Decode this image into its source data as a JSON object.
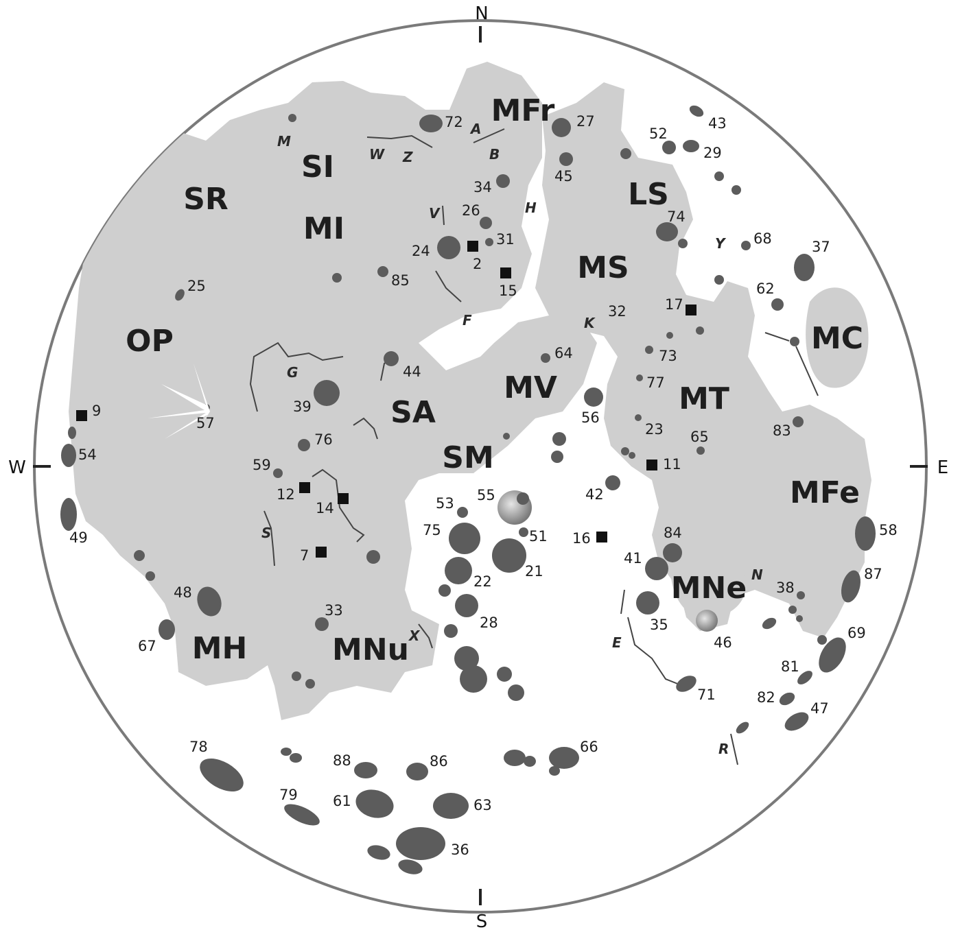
{
  "colors": {
    "background": "#ffffff",
    "disk": "#ffffff",
    "disk_edge": "#7a7a7a",
    "maria": "#cfcfcf",
    "crater": "#5c5c5c",
    "text": "#1e1e1e"
  },
  "compass": {
    "north": "N",
    "south": "S",
    "west": "W",
    "east": "E"
  },
  "maria": [
    {
      "label": "SR"
    },
    {
      "label": "SI"
    },
    {
      "label": "MI"
    },
    {
      "label": "MFr"
    },
    {
      "label": "LS"
    },
    {
      "label": "MS"
    },
    {
      "label": "MC"
    },
    {
      "label": "OP"
    },
    {
      "label": "SA"
    },
    {
      "label": "MV"
    },
    {
      "label": "MT"
    },
    {
      "label": "SM"
    },
    {
      "label": "MFe"
    },
    {
      "label": "MNe"
    },
    {
      "label": "MH"
    },
    {
      "label": "MNu"
    }
  ],
  "features": [
    {
      "label": "72"
    },
    {
      "label": "27"
    },
    {
      "label": "43"
    },
    {
      "label": "52"
    },
    {
      "label": "29"
    },
    {
      "label": "45"
    },
    {
      "label": "34"
    },
    {
      "label": "26"
    },
    {
      "label": "31"
    },
    {
      "label": "24"
    },
    {
      "label": "2"
    },
    {
      "label": "15"
    },
    {
      "label": "85"
    },
    {
      "label": "74"
    },
    {
      "label": "68"
    },
    {
      "label": "37"
    },
    {
      "label": "62"
    },
    {
      "label": "32"
    },
    {
      "label": "17"
    },
    {
      "label": "25"
    },
    {
      "label": "73"
    },
    {
      "label": "64"
    },
    {
      "label": "44"
    },
    {
      "label": "77"
    },
    {
      "label": "39"
    },
    {
      "label": "56"
    },
    {
      "label": "9"
    },
    {
      "label": "57"
    },
    {
      "label": "23"
    },
    {
      "label": "83"
    },
    {
      "label": "65"
    },
    {
      "label": "76"
    },
    {
      "label": "54"
    },
    {
      "label": "59"
    },
    {
      "label": "11"
    },
    {
      "label": "12"
    },
    {
      "label": "14"
    },
    {
      "label": "42"
    },
    {
      "label": "53"
    },
    {
      "label": "55"
    },
    {
      "label": "75"
    },
    {
      "label": "51"
    },
    {
      "label": "84"
    },
    {
      "label": "58"
    },
    {
      "label": "16"
    },
    {
      "label": "49"
    },
    {
      "label": "7"
    },
    {
      "label": "41"
    },
    {
      "label": "21"
    },
    {
      "label": "22"
    },
    {
      "label": "87"
    },
    {
      "label": "38"
    },
    {
      "label": "48"
    },
    {
      "label": "33"
    },
    {
      "label": "28"
    },
    {
      "label": "35"
    },
    {
      "label": "69"
    },
    {
      "label": "67"
    },
    {
      "label": "46"
    },
    {
      "label": "81"
    },
    {
      "label": "71"
    },
    {
      "label": "82"
    },
    {
      "label": "47"
    },
    {
      "label": "78"
    },
    {
      "label": "88"
    },
    {
      "label": "86"
    },
    {
      "label": "66"
    },
    {
      "label": "79"
    },
    {
      "label": "61"
    },
    {
      "label": "63"
    },
    {
      "label": "36"
    }
  ],
  "rilles": [
    {
      "label": "A"
    },
    {
      "label": "B"
    },
    {
      "label": "M"
    },
    {
      "label": "W"
    },
    {
      "label": "Z"
    },
    {
      "label": "H"
    },
    {
      "label": "V"
    },
    {
      "label": "Y"
    },
    {
      "label": "F"
    },
    {
      "label": "K"
    },
    {
      "label": "G"
    },
    {
      "label": "S"
    },
    {
      "label": "N"
    },
    {
      "label": "X"
    },
    {
      "label": "E"
    },
    {
      "label": "R"
    }
  ]
}
